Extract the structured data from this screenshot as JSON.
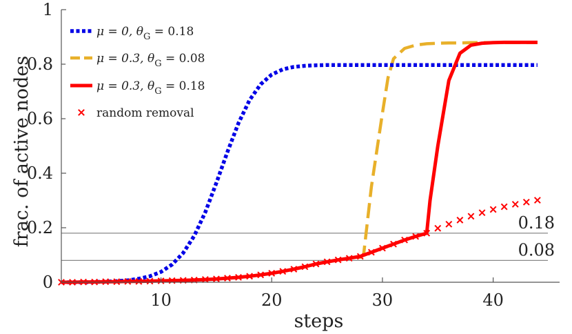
{
  "chart_data": {
    "type": "line",
    "title": "",
    "xlabel": "steps",
    "ylabel": "frac. of active nodes",
    "xlim": [
      1,
      46
    ],
    "ylim": [
      0,
      1
    ],
    "xticks": [
      10,
      20,
      30,
      40
    ],
    "yticks": [
      0,
      0.2,
      0.4,
      0.6,
      0.8,
      1
    ],
    "ytick_labels": [
      "0",
      "0.2",
      "0.4",
      "0.6",
      "0.8",
      "1"
    ],
    "xtick_labels": [
      "10",
      "20",
      "30",
      "40"
    ],
    "grid": false,
    "legend_position": "top-left",
    "reference_lines": [
      {
        "y": 0.18,
        "label": "0.18"
      },
      {
        "y": 0.08,
        "label": "0.08"
      }
    ],
    "series": [
      {
        "name": "blue-dotted",
        "legend": "μ = 0, θG = 0.18",
        "legend_parts": {
          "mu": "μ = 0,",
          "theta": "θ",
          "sub": "G",
          "rest": "= 0.18"
        },
        "color": "#0000e6",
        "style": "dotted",
        "x": [
          1,
          2,
          3,
          4,
          5,
          6,
          7,
          8,
          9,
          10,
          11,
          12,
          13,
          14,
          15,
          16,
          17,
          18,
          19,
          20,
          21,
          22,
          23,
          24,
          25,
          26,
          27,
          28,
          29,
          30,
          31,
          32,
          33,
          34,
          35,
          36,
          37,
          38,
          39,
          40,
          41,
          42,
          43,
          44
        ],
        "y": [
          0.0,
          0.0,
          0.0,
          0.001,
          0.002,
          0.004,
          0.007,
          0.013,
          0.022,
          0.038,
          0.065,
          0.107,
          0.17,
          0.257,
          0.364,
          0.478,
          0.584,
          0.668,
          0.726,
          0.762,
          0.781,
          0.79,
          0.794,
          0.796,
          0.797,
          0.797,
          0.797,
          0.797,
          0.797,
          0.797,
          0.797,
          0.797,
          0.797,
          0.797,
          0.797,
          0.797,
          0.797,
          0.797,
          0.797,
          0.797,
          0.797,
          0.797,
          0.797,
          0.797
        ]
      },
      {
        "name": "orange-dashed",
        "legend": "μ = 0.3, θG = 0.08",
        "legend_parts": {
          "mu": "μ = 0.3,",
          "theta": "θ",
          "sub": "G",
          "rest": "= 0.08"
        },
        "color": "#e8b02a",
        "style": "dashed",
        "x": [
          1,
          2,
          3,
          4,
          5,
          6,
          7,
          8,
          9,
          10,
          11,
          12,
          13,
          14,
          15,
          16,
          17,
          18,
          19,
          20,
          21,
          22,
          23,
          24,
          25,
          26,
          27,
          28,
          28.3,
          29,
          30,
          30.5,
          31,
          32,
          33,
          34,
          35,
          36,
          37,
          38,
          39,
          40,
          41,
          42,
          43,
          44
        ],
        "y": [
          0.0,
          0.0,
          0.001,
          0.001,
          0.002,
          0.002,
          0.003,
          0.003,
          0.004,
          0.005,
          0.006,
          0.007,
          0.008,
          0.01,
          0.012,
          0.015,
          0.018,
          0.022,
          0.027,
          0.033,
          0.04,
          0.048,
          0.057,
          0.067,
          0.075,
          0.082,
          0.088,
          0.092,
          0.1,
          0.35,
          0.62,
          0.75,
          0.82,
          0.858,
          0.87,
          0.875,
          0.877,
          0.878,
          0.878,
          0.879,
          0.879,
          0.879,
          0.879,
          0.879,
          0.879,
          0.879
        ]
      },
      {
        "name": "red-solid",
        "legend": "μ = 0.3, θG = 0.18",
        "legend_parts": {
          "mu": "μ = 0.3,",
          "theta": "θ",
          "sub": "G",
          "rest": "= 0.18"
        },
        "color": "#ff0000",
        "style": "solid",
        "x": [
          1,
          2,
          3,
          4,
          5,
          6,
          7,
          8,
          9,
          10,
          11,
          12,
          13,
          14,
          15,
          16,
          17,
          18,
          19,
          20,
          21,
          22,
          23,
          24,
          25,
          26,
          27,
          28,
          29,
          30,
          31,
          32,
          33,
          34,
          34.3,
          35,
          36,
          37,
          38,
          39,
          40,
          41,
          42,
          43,
          44
        ],
        "y": [
          0.0,
          0.0,
          0.001,
          0.001,
          0.002,
          0.002,
          0.003,
          0.003,
          0.004,
          0.005,
          0.006,
          0.007,
          0.008,
          0.01,
          0.012,
          0.015,
          0.018,
          0.022,
          0.027,
          0.033,
          0.04,
          0.048,
          0.057,
          0.067,
          0.075,
          0.082,
          0.088,
          0.095,
          0.11,
          0.125,
          0.14,
          0.155,
          0.168,
          0.18,
          0.3,
          0.5,
          0.74,
          0.84,
          0.87,
          0.877,
          0.879,
          0.88,
          0.88,
          0.88,
          0.88
        ]
      },
      {
        "name": "random-removal",
        "legend": "random removal",
        "color": "#ff0000",
        "style": "markers-x",
        "x": [
          1,
          2,
          3,
          4,
          5,
          6,
          7,
          8,
          9,
          10,
          11,
          12,
          13,
          14,
          15,
          16,
          17,
          18,
          19,
          20,
          21,
          22,
          23,
          24,
          25,
          26,
          27,
          28,
          29,
          30,
          31,
          32,
          33,
          34,
          35,
          36,
          37,
          38,
          39,
          40,
          41,
          42,
          43,
          44
        ],
        "y": [
          0.0,
          0.0,
          0.001,
          0.001,
          0.002,
          0.002,
          0.003,
          0.003,
          0.004,
          0.005,
          0.006,
          0.007,
          0.008,
          0.01,
          0.012,
          0.015,
          0.018,
          0.022,
          0.027,
          0.033,
          0.04,
          0.048,
          0.057,
          0.067,
          0.075,
          0.082,
          0.088,
          0.095,
          0.11,
          0.125,
          0.14,
          0.155,
          0.168,
          0.18,
          0.198,
          0.213,
          0.228,
          0.242,
          0.255,
          0.267,
          0.277,
          0.286,
          0.294,
          0.301
        ]
      }
    ]
  }
}
